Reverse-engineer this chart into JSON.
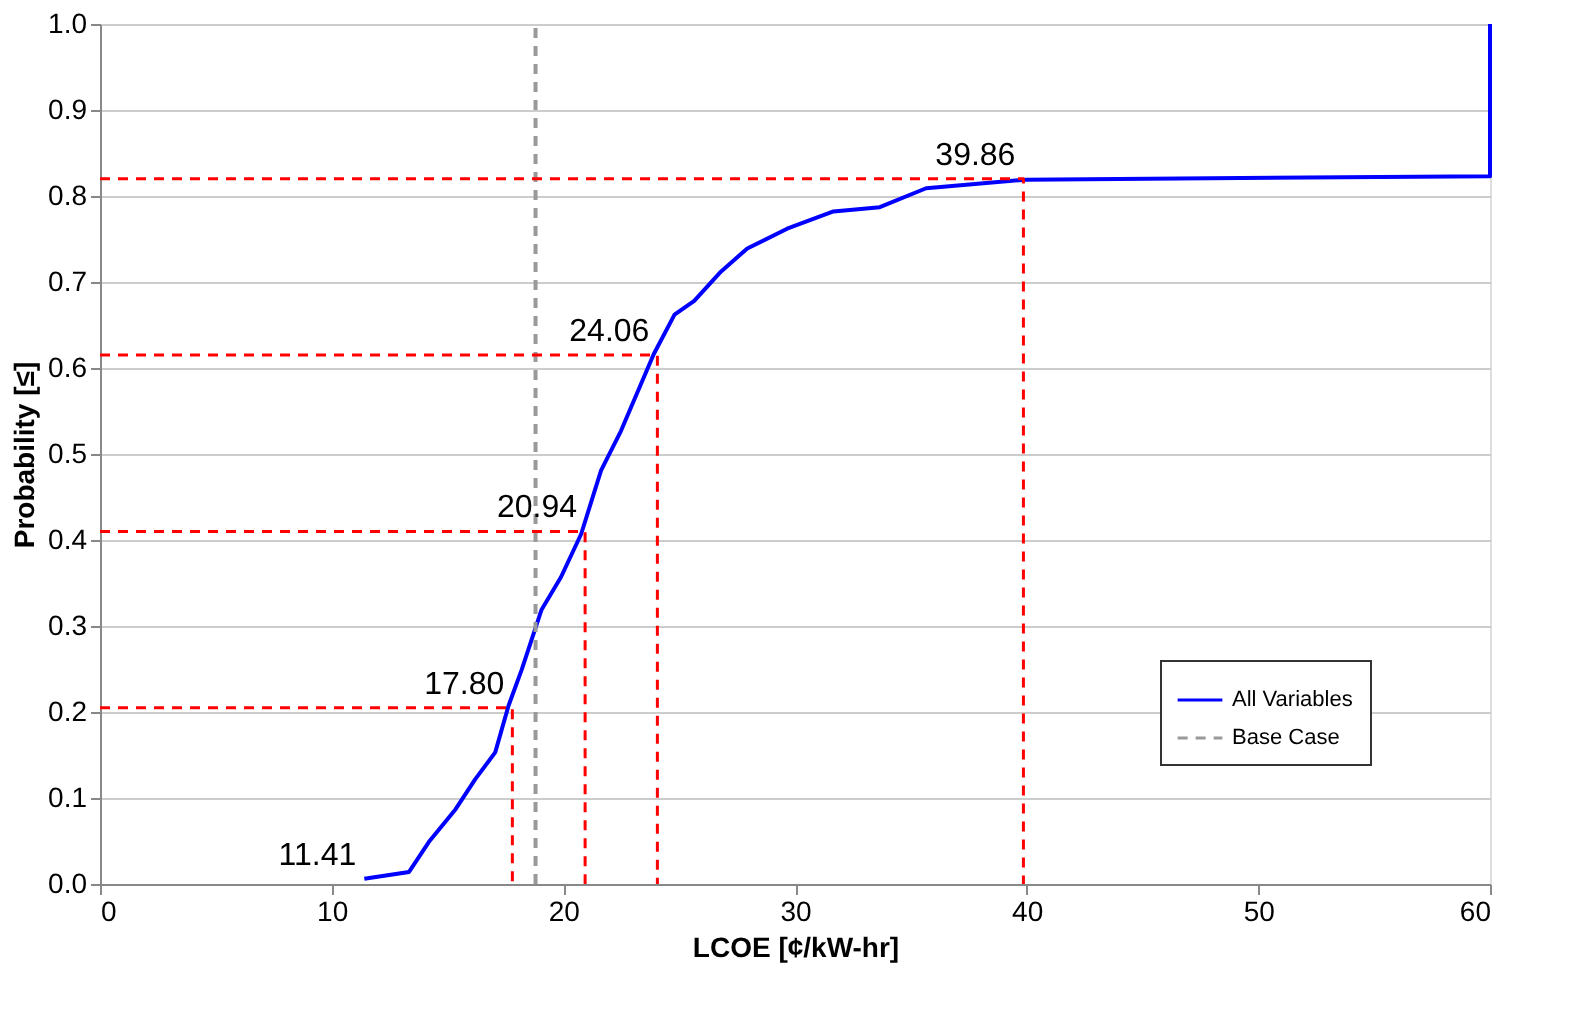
{
  "chart_data": {
    "type": "line",
    "xlabel": "LCOE [¢/kW-hr]",
    "ylabel": "Probability [≤]",
    "xlim": [
      0,
      60
    ],
    "xticks": [
      0,
      10,
      20,
      30,
      40,
      50,
      60
    ],
    "ylim": [
      0,
      1
    ],
    "yticks": [
      {
        "value": 0,
        "label": "0.0"
      },
      {
        "value": 0.1,
        "label": "0.1"
      },
      {
        "value": 0.2,
        "label": "0.2"
      },
      {
        "value": 0.3,
        "label": "0.3"
      },
      {
        "value": 0.4,
        "label": "0.4"
      },
      {
        "value": 0.5,
        "label": "0.5"
      },
      {
        "value": 0.6,
        "label": "0.6"
      },
      {
        "value": 0.7,
        "label": "0.7"
      },
      {
        "value": 0.8,
        "label": "0.8"
      },
      {
        "value": 0.9,
        "label": "0.9"
      },
      {
        "value": 1,
        "label": "1.0"
      }
    ],
    "grid": "y",
    "legend": "bottom right",
    "line_style": "solid",
    "marker": "none",
    "series": [
      {
        "name": "All Variables",
        "color": "#0000ff",
        "x": [
          11.41,
          13.34,
          14.2,
          15.35,
          16.2,
          17.06,
          17.63,
          18.2,
          19.06,
          19.9,
          20.77,
          21.63,
          22.49,
          23.9,
          24.8,
          25.65,
          26.8,
          27.94,
          29.66,
          31.66,
          33.66,
          35.66,
          39.94,
          60,
          60
        ],
        "values": [
          0.006,
          0.014,
          0.049,
          0.087,
          0.122,
          0.153,
          0.207,
          0.249,
          0.319,
          0.357,
          0.407,
          0.481,
          0.527,
          0.616,
          0.662,
          0.678,
          0.712,
          0.739,
          0.762,
          0.782,
          0.787,
          0.809,
          0.819,
          0.823,
          1.0
        ]
      },
      {
        "name": "Base Case",
        "color": "#999999",
        "line_style": "dashed",
        "x": [
          18.8,
          18.8
        ],
        "values": [
          0,
          1
        ]
      },
      {
        "color": "#ff0000",
        "line_style": "dashed",
        "x": [
          0,
          17.8,
          17.8
        ],
        "values": [
          0.205,
          0.205,
          0
        ]
      },
      {
        "color": "#ff0000",
        "line_style": "dashed",
        "x": [
          0,
          20.94,
          20.94
        ],
        "values": [
          0.41,
          0.41,
          0
        ]
      },
      {
        "color": "#ff0000",
        "line_style": "dashed",
        "x": [
          0,
          24.06,
          24.06
        ],
        "values": [
          0.615,
          0.615,
          0
        ]
      },
      {
        "color": "#ff0000",
        "line_style": "dashed",
        "x": [
          0,
          39.86,
          39.86
        ],
        "values": [
          0.82,
          0.82,
          0
        ]
      }
    ],
    "annotations": [
      {
        "text": "11.41",
        "x": 11.41,
        "y": 0.006
      },
      {
        "text": "17.80",
        "x": 17.8,
        "y": 0.205
      },
      {
        "text": "20.94",
        "x": 20.94,
        "y": 0.41
      },
      {
        "text": "24.06",
        "x": 24.06,
        "y": 0.615
      },
      {
        "text": "39.86",
        "x": 39.86,
        "y": 0.82
      }
    ]
  }
}
